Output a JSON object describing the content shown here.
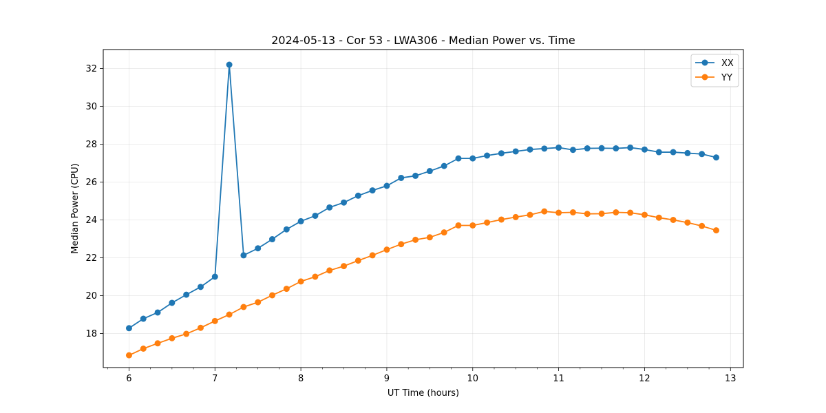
{
  "chart_data": {
    "type": "line",
    "title": "2024-05-13 - Cor 53 - LWA306 - Median Power vs. Time",
    "xlabel": "UT Time (hours)",
    "ylabel": "Median Power (CPU)",
    "xlim": [
      5.7,
      13.15
    ],
    "ylim": [
      16.2,
      33.0
    ],
    "xticks": [
      6,
      7,
      8,
      9,
      10,
      11,
      12,
      13
    ],
    "yticks": [
      18,
      20,
      22,
      24,
      26,
      28,
      30,
      32
    ],
    "grid": true,
    "legend_position": "top-right",
    "x": [
      6.0,
      6.1667,
      6.3333,
      6.5,
      6.6667,
      6.8333,
      7.0,
      7.1667,
      7.3333,
      7.5,
      7.6667,
      7.8333,
      8.0,
      8.1667,
      8.3333,
      8.5,
      8.6667,
      8.8333,
      9.0,
      9.1667,
      9.3333,
      9.5,
      9.6667,
      9.8333,
      10.0,
      10.1667,
      10.3333,
      10.5,
      10.6667,
      10.8333,
      11.0,
      11.1667,
      11.3333,
      11.5,
      11.6667,
      11.8333,
      12.0,
      12.1667,
      12.3333,
      12.5,
      12.6667,
      12.8333
    ],
    "series": [
      {
        "name": "XX",
        "color": "#1f77b4",
        "values": [
          18.28,
          18.78,
          19.11,
          19.62,
          20.05,
          20.46,
          21.0,
          32.2,
          22.13,
          22.5,
          22.98,
          23.5,
          23.93,
          24.22,
          24.66,
          24.92,
          25.28,
          25.56,
          25.8,
          26.22,
          26.33,
          26.58,
          26.85,
          27.25,
          27.25,
          27.4,
          27.52,
          27.62,
          27.72,
          27.77,
          27.82,
          27.7,
          27.78,
          27.79,
          27.78,
          27.82,
          27.72,
          27.58,
          27.58,
          27.53,
          27.48,
          27.3
        ]
      },
      {
        "name": "YY",
        "color": "#ff7f0e",
        "values": [
          16.85,
          17.2,
          17.48,
          17.75,
          17.98,
          18.3,
          18.66,
          19.0,
          19.4,
          19.65,
          20.02,
          20.36,
          20.75,
          21.0,
          21.33,
          21.56,
          21.85,
          22.13,
          22.43,
          22.72,
          22.95,
          23.08,
          23.34,
          23.71,
          23.71,
          23.86,
          24.02,
          24.15,
          24.27,
          24.45,
          24.38,
          24.4,
          24.32,
          24.33,
          24.4,
          24.38,
          24.27,
          24.12,
          24.0,
          23.86,
          23.68,
          23.45
        ]
      }
    ]
  }
}
